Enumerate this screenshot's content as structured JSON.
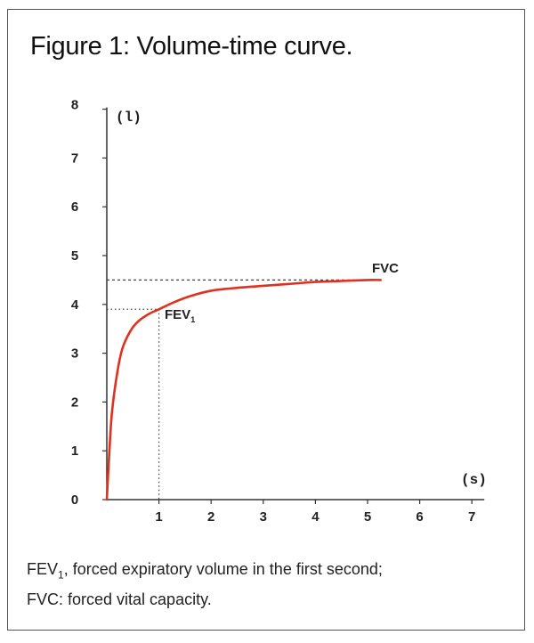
{
  "figure": {
    "title": "Figure 1: Volume-time curve.",
    "caption_line1_prefix": "FEV",
    "caption_line1_sub": "1",
    "caption_line1_rest": ", forced expiratory volume in the first second;",
    "caption_line2": "FVC: forced vital capacity."
  },
  "chart_data": {
    "type": "line",
    "title": "Figure 1: Volume-time curve.",
    "xlabel": "(s)",
    "ylabel": "(l)",
    "xlim": [
      0,
      7
    ],
    "ylim": [
      0,
      8
    ],
    "x_ticks": [
      "1",
      "2",
      "3",
      "4",
      "5",
      "6",
      "7"
    ],
    "y_ticks": [
      "0",
      "1",
      "2",
      "3",
      "4",
      "5",
      "6",
      "7",
      "8"
    ],
    "grid": false,
    "series": [
      {
        "color": "#e0301e",
        "x": [
          0,
          0.05,
          0.1,
          0.2,
          0.3,
          0.45,
          0.6,
          0.8,
          1.0,
          1.3,
          1.6,
          2.0,
          2.5,
          3.0,
          3.5,
          4.0,
          4.5,
          5.0,
          5.25
        ],
        "y": [
          0,
          1.0,
          1.8,
          2.6,
          3.1,
          3.45,
          3.65,
          3.8,
          3.9,
          4.05,
          4.17,
          4.28,
          4.34,
          4.38,
          4.42,
          4.46,
          4.48,
          4.5,
          4.5
        ]
      }
    ],
    "annotations": [
      {
        "text": "FEV",
        "subscript": "1",
        "x": 1.0,
        "y": 3.9,
        "guide": "dotted"
      },
      {
        "text": "FVC",
        "x": 5.25,
        "y": 4.5,
        "guide": "dotted"
      }
    ]
  }
}
